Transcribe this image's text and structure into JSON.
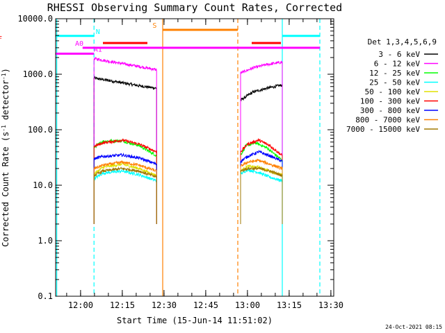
{
  "chart_data": {
    "type": "line",
    "title": "RHESSI Observing Summary Count Rates, Corrected",
    "xlabel": "Start Time (15-Jun-14 11:51:02)",
    "ylabel_main": "Corrected Count Rate (s",
    "ylabel_sup": "-1",
    "ylabel_tail": " detector",
    "ylabel_sup2": "-1",
    "ylabel_end": ")",
    "x_units": "minutes after 11:51:02",
    "xlim": [
      0,
      100
    ],
    "ylim": [
      0.1,
      10000
    ],
    "yscale": "log",
    "x_ticks": [
      {
        "label": "12:00",
        "value": 8.97
      },
      {
        "label": "12:15",
        "value": 23.97
      },
      {
        "label": "12:30",
        "value": 38.97
      },
      {
        "label": "12:45",
        "value": 53.97
      },
      {
        "label": "13:00",
        "value": 68.97
      },
      {
        "label": "13:15",
        "value": 83.97
      },
      {
        "label": "13:30",
        "value": 98.97
      }
    ],
    "y_ticks": [
      {
        "label": "10000.0",
        "value": 10000
      },
      {
        "label": "1000.0",
        "value": 1000
      },
      {
        "label": "100.0",
        "value": 100
      },
      {
        "label": "10.0",
        "value": 10
      },
      {
        "label": "1.0",
        "value": 1
      },
      {
        "label": "0.1",
        "value": 0.1
      }
    ],
    "legend": {
      "title": "Det 1,3,4,5,6,9",
      "placement": "right",
      "entries": [
        {
          "label": "3 - 6 keV",
          "color": "#000000"
        },
        {
          "label": "6 - 12 keV",
          "color": "#ff00ff"
        },
        {
          "label": "12 - 25 keV",
          "color": "#00ff00"
        },
        {
          "label": "25 - 50 keV",
          "color": "#00ffff"
        },
        {
          "label": "50 - 100 keV",
          "color": "#e0e000"
        },
        {
          "label": "100 - 300 keV",
          "color": "#ff0000"
        },
        {
          "label": "300 - 800 keV",
          "color": "#0000ff"
        },
        {
          "label": "800 - 7000 keV",
          "color": "#ff8000"
        },
        {
          "label": "7000 - 15000 keV",
          "color": "#a07800"
        }
      ]
    },
    "segments": [
      {
        "x0": 13.8,
        "x1": 36.3
      },
      {
        "x0": 66.5,
        "x1": 81.5
      }
    ],
    "series": [
      {
        "color": "#000000",
        "seg1": [
          [
            13.8,
            850
          ],
          [
            20,
            760
          ],
          [
            30,
            620
          ],
          [
            36.3,
            560
          ]
        ],
        "seg2": [
          [
            66.5,
            340
          ],
          [
            71,
            480
          ],
          [
            76,
            560
          ],
          [
            81.5,
            640
          ]
        ]
      },
      {
        "color": "#ff00ff",
        "seg1": [
          [
            13.8,
            1920
          ],
          [
            20,
            1680
          ],
          [
            30,
            1380
          ],
          [
            36.3,
            1200
          ]
        ],
        "seg2": [
          [
            66.5,
            1050
          ],
          [
            71,
            1300
          ],
          [
            76,
            1500
          ],
          [
            81.5,
            1650
          ]
        ]
      },
      {
        "color": "#00ff00",
        "seg1": [
          [
            13.8,
            48
          ],
          [
            17,
            62
          ],
          [
            24,
            63
          ],
          [
            30,
            52
          ],
          [
            36.3,
            34
          ]
        ],
        "seg2": [
          [
            66.5,
            35
          ],
          [
            68.5,
            52
          ],
          [
            72,
            58
          ],
          [
            76,
            47
          ],
          [
            81.5,
            28
          ]
        ]
      },
      {
        "color": "#00ffff",
        "seg1": [
          [
            13.8,
            13
          ],
          [
            17,
            16.5
          ],
          [
            24,
            18
          ],
          [
            30,
            15.5
          ],
          [
            36.3,
            12
          ]
        ],
        "seg2": [
          [
            66.5,
            16
          ],
          [
            69,
            19
          ],
          [
            73,
            17
          ],
          [
            77,
            14
          ],
          [
            81.5,
            12
          ]
        ]
      },
      {
        "color": "#e0e000",
        "seg1": [
          [
            13.8,
            16
          ],
          [
            17,
            21
          ],
          [
            24,
            24
          ],
          [
            30,
            20
          ],
          [
            36.3,
            15
          ]
        ],
        "seg2": [
          [
            66.5,
            18
          ],
          [
            69,
            22
          ],
          [
            73,
            21
          ],
          [
            77,
            18
          ],
          [
            81.5,
            15
          ]
        ]
      },
      {
        "color": "#ff0000",
        "seg1": [
          [
            13.8,
            50
          ],
          [
            17,
            58
          ],
          [
            24,
            65
          ],
          [
            30,
            55
          ],
          [
            36.3,
            40
          ]
        ],
        "seg2": [
          [
            66.5,
            40
          ],
          [
            69,
            55
          ],
          [
            73,
            65
          ],
          [
            77,
            52
          ],
          [
            81.5,
            34
          ]
        ]
      },
      {
        "color": "#0000ff",
        "seg1": [
          [
            13.8,
            30
          ],
          [
            17,
            33
          ],
          [
            24,
            35
          ],
          [
            30,
            31
          ],
          [
            36.3,
            24
          ]
        ],
        "seg2": [
          [
            66.5,
            27
          ],
          [
            69,
            33
          ],
          [
            73,
            40
          ],
          [
            77,
            34
          ],
          [
            81.5,
            27
          ]
        ]
      },
      {
        "color": "#ff8000",
        "seg1": [
          [
            13.8,
            20
          ],
          [
            17,
            23
          ],
          [
            24,
            26
          ],
          [
            30,
            23
          ],
          [
            36.3,
            18
          ]
        ],
        "seg2": [
          [
            66.5,
            22
          ],
          [
            69,
            26
          ],
          [
            73,
            28
          ],
          [
            77,
            24
          ],
          [
            81.5,
            20
          ]
        ]
      },
      {
        "color": "#a07800",
        "seg1": [
          [
            13.8,
            15
          ],
          [
            17,
            18
          ],
          [
            24,
            20
          ],
          [
            30,
            18
          ],
          [
            36.3,
            14
          ]
        ],
        "seg2": [
          [
            66.5,
            18
          ],
          [
            69,
            20
          ],
          [
            73,
            20
          ],
          [
            77,
            18
          ],
          [
            81.5,
            15
          ]
        ]
      }
    ],
    "flag_bars": [
      {
        "label": "N",
        "color": "#00ffff",
        "y": 4900,
        "x0": 0,
        "x1": 13.8,
        "label_x": 15.2
      },
      {
        "label": "",
        "color": "#00ffff",
        "y": 4900,
        "x0": 81.5,
        "x1": 95
      },
      {
        "label": "F",
        "color": "#ff0000",
        "y": 3650,
        "x0": 17,
        "x1": 33
      },
      {
        "label": "",
        "color": "#ff0000",
        "y": 3650,
        "x0": 70.5,
        "x1": 81
      },
      {
        "label": "S",
        "color": "#ff8000",
        "y": 6300,
        "x0": 38.5,
        "x1": 65.5,
        "label_x": 35.6
      },
      {
        "label": "A0",
        "color": "#ff00ff",
        "y": 3000,
        "x0": 9.7,
        "x1": 95,
        "label_x": 8.5
      },
      {
        "label": "A1",
        "color": "#ff00ff",
        "y": 2350,
        "x0": 0,
        "x1": 13.8,
        "label_x": 15.2
      }
    ],
    "vertical_lines": [
      {
        "x": 13.8,
        "color": "#00ffff",
        "style": "dashed"
      },
      {
        "x": 81.5,
        "color": "#00ffff",
        "style": "solid"
      },
      {
        "x": 95,
        "color": "#00ffff",
        "style": "dashed"
      },
      {
        "x": 0.4,
        "color": "#00ffff",
        "style": "solid"
      },
      {
        "x": 38.5,
        "color": "#ff8000",
        "style": "solid"
      },
      {
        "x": 65.5,
        "color": "#ff8000",
        "style": "dashed"
      }
    ]
  },
  "footer": {
    "timestamp": "24-Oct-2021 08:15"
  }
}
